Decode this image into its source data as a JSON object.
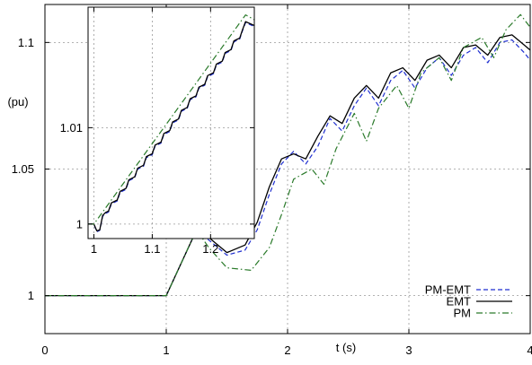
{
  "chart_data": [
    {
      "type": "line",
      "title": "",
      "xlabel": "t (s)",
      "ylabel": "(pu)",
      "xlim": [
        0,
        4
      ],
      "ylim": [
        0.985,
        1.115
      ],
      "xticks": [
        "0",
        "1",
        "2",
        "3",
        "4"
      ],
      "yticks": [
        "1",
        "1.05",
        "1.1"
      ],
      "xtick_values": [
        0,
        1,
        2,
        3,
        4
      ],
      "ytick_values": [
        1,
        1.05,
        1.1
      ],
      "grid": true,
      "legend_position": "bottom-right",
      "series": [
        {
          "name": "PM-EMT",
          "color": "#1f2fd0",
          "style": "dashed",
          "x": [
            0,
            1,
            1.25,
            1.35,
            1.5,
            1.65,
            1.75,
            1.85,
            1.95,
            2.05,
            2.15,
            2.25,
            2.35,
            2.45,
            2.55,
            2.65,
            2.75,
            2.85,
            2.95,
            3.05,
            3.15,
            3.25,
            3.35,
            3.45,
            3.55,
            3.65,
            3.75,
            3.85,
            3.95,
            4
          ],
          "values": [
            1,
            1,
            1.026,
            1.022,
            1.016,
            1.018,
            1.026,
            1.04,
            1.052,
            1.057,
            1.052,
            1.059,
            1.07,
            1.065,
            1.075,
            1.082,
            1.075,
            1.085,
            1.089,
            1.082,
            1.09,
            1.094,
            1.087,
            1.095,
            1.098,
            1.092,
            1.1,
            1.101,
            1.096,
            1.093
          ]
        },
        {
          "name": "EMT",
          "color": "#000000",
          "style": "solid",
          "x": [
            0,
            1,
            1.25,
            1.35,
            1.5,
            1.65,
            1.75,
            1.85,
            1.95,
            2.05,
            2.15,
            2.25,
            2.35,
            2.45,
            2.55,
            2.65,
            2.75,
            2.85,
            2.95,
            3.05,
            3.15,
            3.25,
            3.35,
            3.45,
            3.55,
            3.65,
            3.75,
            3.85,
            3.95,
            4
          ],
          "values": [
            1,
            1,
            1.026,
            1.023,
            1.017,
            1.02,
            1.029,
            1.043,
            1.054,
            1.056,
            1.054,
            1.063,
            1.071,
            1.068,
            1.078,
            1.083,
            1.078,
            1.088,
            1.09,
            1.085,
            1.093,
            1.095,
            1.09,
            1.098,
            1.099,
            1.095,
            1.102,
            1.103,
            1.099,
            1.097
          ]
        },
        {
          "name": "PM",
          "color": "#2a7a2a",
          "style": "dash-dot",
          "x": [
            0,
            1,
            1.25,
            1.35,
            1.5,
            1.7,
            1.85,
            1.95,
            2.05,
            2.2,
            2.3,
            2.4,
            2.55,
            2.65,
            2.75,
            2.9,
            3.0,
            3.1,
            3.25,
            3.35,
            3.45,
            3.6,
            3.7,
            3.8,
            3.92,
            4
          ],
          "values": [
            1,
            1,
            1.026,
            1.019,
            1.011,
            1.01,
            1.019,
            1.032,
            1.046,
            1.05,
            1.044,
            1.058,
            1.072,
            1.061,
            1.074,
            1.083,
            1.074,
            1.088,
            1.094,
            1.085,
            1.098,
            1.102,
            1.094,
            1.105,
            1.111,
            1.106
          ]
        }
      ]
    },
    {
      "type": "line",
      "title": "",
      "xlabel": "",
      "ylabel": "",
      "xlim": [
        0.99,
        1.275
      ],
      "ylim": [
        0.9985,
        1.0225
      ],
      "xticks": [
        "1",
        "1.1",
        "1.2"
      ],
      "yticks": [
        "1",
        "1.01"
      ],
      "xtick_values": [
        1,
        1.1,
        1.2
      ],
      "ytick_values": [
        1,
        1.01
      ],
      "grid": true,
      "series": [
        {
          "name": "PM-EMT",
          "color": "#1f2fd0",
          "style": "dashed",
          "x": [
            0.99,
            1.0,
            1.005,
            1.01,
            1.015,
            1.02,
            1.025,
            1.03,
            1.035,
            1.04,
            1.045,
            1.05,
            1.055,
            1.06,
            1.065,
            1.07,
            1.075,
            1.08,
            1.085,
            1.09,
            1.095,
            1.1,
            1.105,
            1.11,
            1.115,
            1.12,
            1.125,
            1.13,
            1.135,
            1.14,
            1.145,
            1.15,
            1.155,
            1.16,
            1.165,
            1.17,
            1.175,
            1.18,
            1.185,
            1.19,
            1.195,
            1.2,
            1.205,
            1.21,
            1.215,
            1.22,
            1.225,
            1.23,
            1.235,
            1.24,
            1.245,
            1.25,
            1.255,
            1.26,
            1.275
          ],
          "values": [
            1.0,
            1.0,
            0.9992,
            0.99935,
            1.0008,
            1.0011,
            1.00125,
            1.0021,
            1.00225,
            1.0024,
            1.0033,
            1.00345,
            1.0036,
            1.0045,
            1.00465,
            1.0048,
            1.0057,
            1.00585,
            1.006,
            1.0069,
            1.00705,
            1.0072,
            1.0081,
            1.00825,
            1.0084,
            1.0093,
            1.00945,
            1.0096,
            1.0105,
            1.01065,
            1.0108,
            1.0117,
            1.01185,
            1.012,
            1.0129,
            1.01305,
            1.0132,
            1.0141,
            1.01425,
            1.0144,
            1.0153,
            1.01545,
            1.0156,
            1.0165,
            1.01665,
            1.0168,
            1.0177,
            1.01785,
            1.018,
            1.0189,
            1.01905,
            1.0192,
            1.0201,
            1.0209,
            1.0205
          ]
        },
        {
          "name": "EMT",
          "color": "#000000",
          "style": "solid",
          "x": [
            0.99,
            1.0,
            1.005,
            1.01,
            1.015,
            1.02,
            1.025,
            1.03,
            1.035,
            1.04,
            1.045,
            1.05,
            1.055,
            1.06,
            1.065,
            1.07,
            1.075,
            1.08,
            1.085,
            1.09,
            1.095,
            1.1,
            1.105,
            1.11,
            1.115,
            1.12,
            1.125,
            1.13,
            1.135,
            1.14,
            1.145,
            1.15,
            1.155,
            1.16,
            1.165,
            1.17,
            1.175,
            1.18,
            1.185,
            1.19,
            1.195,
            1.2,
            1.205,
            1.21,
            1.215,
            1.22,
            1.225,
            1.23,
            1.235,
            1.24,
            1.245,
            1.25,
            1.255,
            1.26,
            1.275
          ],
          "values": [
            1.0,
            1.0,
            0.9993,
            0.9994,
            1.0009,
            1.0012,
            1.00135,
            1.0022,
            1.00235,
            1.0025,
            1.0034,
            1.00355,
            1.0037,
            1.0046,
            1.00475,
            1.0049,
            1.0058,
            1.00595,
            1.0061,
            1.007,
            1.00715,
            1.0073,
            1.0082,
            1.00835,
            1.0085,
            1.0094,
            1.00955,
            1.0097,
            1.0106,
            1.01075,
            1.0109,
            1.0118,
            1.01195,
            1.0121,
            1.013,
            1.01315,
            1.0133,
            1.0142,
            1.01435,
            1.0145,
            1.0154,
            1.01555,
            1.0157,
            1.0166,
            1.01675,
            1.0169,
            1.0178,
            1.01795,
            1.0181,
            1.019,
            1.01915,
            1.0193,
            1.0202,
            1.021,
            1.0206
          ]
        },
        {
          "name": "PM",
          "color": "#2a7a2a",
          "style": "dash-dot",
          "x": [
            0.99,
            1.0,
            1.26,
            1.275
          ],
          "values": [
            1.0,
            1.0,
            1.0217,
            1.0212
          ]
        }
      ]
    }
  ]
}
